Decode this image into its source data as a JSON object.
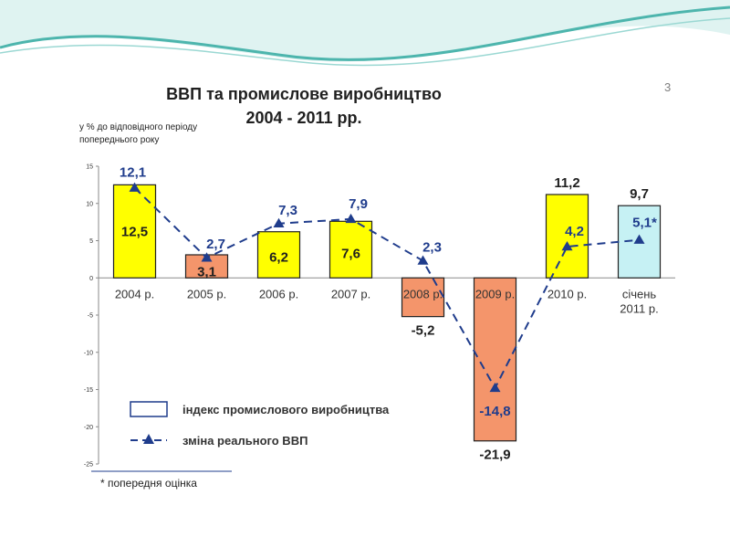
{
  "slide": {
    "number": "3",
    "accent_color": "#4db5ad"
  },
  "chart_data": {
    "type": "bar",
    "title": "ВВП та промислове виробництво",
    "subtitle": "2004 - 2011 рр.",
    "ylabel": "у % до відповідного періоду попереднього року",
    "ylim": [
      -25,
      15
    ],
    "yticks": [
      15,
      10,
      5,
      0,
      -5,
      -10,
      -15,
      -20,
      -25
    ],
    "categories": [
      "2004 р.",
      "2005 р.",
      "2006 р.",
      "2007 р.",
      "2008 р.",
      "2009 р.",
      "2010 р.",
      "січень 2011 р."
    ],
    "series": [
      {
        "name": "індекс  промислового виробництва",
        "kind": "bar",
        "values": [
          12.5,
          3.1,
          6.2,
          7.6,
          -5.2,
          -21.9,
          11.2,
          9.7
        ],
        "labels": [
          "12,5",
          "3,1",
          "6,2",
          "7,6",
          "-5,2",
          "-21,9",
          "11,2",
          "9,7"
        ],
        "colors": [
          "#ffff00",
          "#f4956b",
          "#ffff00",
          "#ffff00",
          "#f4956b",
          "#f4956b",
          "#ffff00",
          "#c6f1f4"
        ]
      },
      {
        "name": "зміна реального ВВП",
        "kind": "line",
        "values": [
          12.1,
          2.7,
          7.3,
          7.9,
          2.3,
          -14.8,
          4.2,
          5.1
        ],
        "labels": [
          "12,1",
          "2,7",
          "7,3",
          "7,9",
          "2,3",
          "-14,8",
          "4,2",
          "5,1*"
        ],
        "color": "#1f3c8c"
      }
    ],
    "legend_position": "bottom-left",
    "grid": false,
    "footnote": "* попередня оцінка"
  }
}
